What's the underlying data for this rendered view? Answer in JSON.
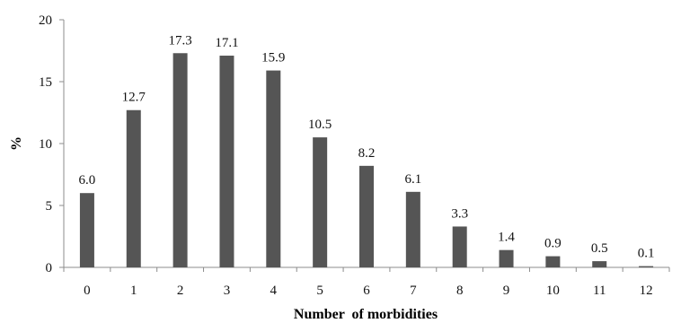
{
  "chart_data": {
    "type": "bar",
    "categories": [
      "0",
      "1",
      "2",
      "3",
      "4",
      "5",
      "6",
      "7",
      "8",
      "9",
      "10",
      "11",
      "12"
    ],
    "values": [
      6.0,
      12.7,
      17.3,
      17.1,
      15.9,
      10.5,
      8.2,
      6.1,
      3.3,
      1.4,
      0.9,
      0.5,
      0.1
    ],
    "data_labels": [
      "6.0",
      "12.7",
      "17.3",
      "17.1",
      "15.9",
      "10.5",
      "8.2",
      "6.1",
      "3.3",
      "1.4",
      "0.9",
      "0.5",
      "0.1"
    ],
    "xlabel": "Number  of morbidities",
    "ylabel": "%",
    "ylim": [
      0,
      20
    ],
    "yticks": [
      "0",
      "5",
      "10",
      "15",
      "20"
    ],
    "grid": false,
    "legend": "none",
    "bar_color": "#555555",
    "axis_color": "#8c8c8c"
  }
}
